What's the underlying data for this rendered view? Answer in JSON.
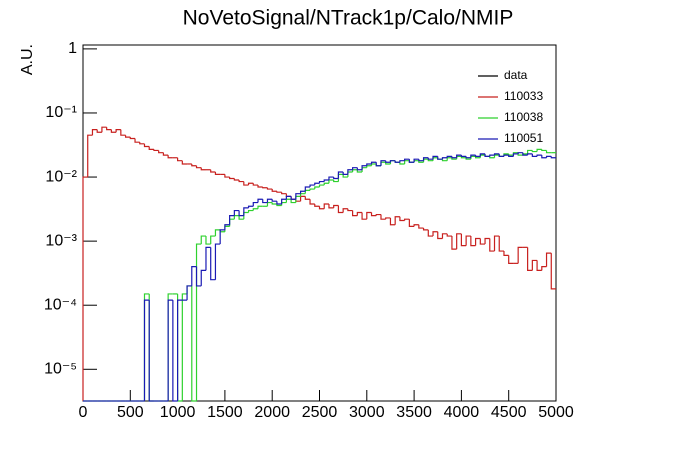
{
  "chart_data": {
    "type": "histogram",
    "title": "NoVetoSignal/NTrack1p/Calo/NMIP",
    "y_label": "A.U.",
    "ylog": true,
    "legend": "top-right",
    "xlim": [
      0,
      5000
    ],
    "ylim": [
      3.2e-06,
      1.15
    ],
    "xticks": [
      0,
      500,
      1000,
      1500,
      2000,
      2500,
      3000,
      3500,
      4000,
      4500,
      5000
    ],
    "yticks": [
      {
        "value": 1e-05,
        "label": "10⁻⁵"
      },
      {
        "value": 0.0001,
        "label": "10⁻⁴"
      },
      {
        "value": 0.001,
        "label": "10⁻³"
      },
      {
        "value": 0.01,
        "label": "10⁻²"
      },
      {
        "value": 0.1,
        "label": "10⁻¹"
      },
      1
    ],
    "bins": [
      0,
      50,
      100,
      150,
      200,
      250,
      300,
      350,
      400,
      450,
      500,
      550,
      600,
      650,
      700,
      750,
      800,
      850,
      900,
      950,
      1000,
      1050,
      1100,
      1150,
      1200,
      1250,
      1300,
      1350,
      1400,
      1450,
      1500,
      1550,
      1600,
      1650,
      1700,
      1750,
      1800,
      1850,
      1900,
      1950,
      2000,
      2050,
      2100,
      2150,
      2200,
      2250,
      2300,
      2350,
      2400,
      2450,
      2500,
      2550,
      2600,
      2650,
      2700,
      2750,
      2800,
      2850,
      2900,
      2950,
      3000,
      3050,
      3100,
      3150,
      3200,
      3250,
      3300,
      3350,
      3400,
      3450,
      3500,
      3550,
      3600,
      3650,
      3700,
      3750,
      3800,
      3850,
      3900,
      3950,
      4000,
      4050,
      4100,
      4150,
      4200,
      4250,
      4300,
      4350,
      4400,
      4450,
      4500,
      4550,
      4600,
      4650,
      4700,
      4750,
      4800,
      4850,
      4900,
      4950,
      5000
    ],
    "series": [
      {
        "name": "data",
        "color": "#000000"
      },
      {
        "name": "110033",
        "color": "#c8201e",
        "values": [
          0.01,
          0.045,
          0.055,
          0.05,
          0.06,
          0.055,
          0.05,
          0.055,
          0.045,
          0.042,
          0.04,
          0.035,
          0.033,
          0.03,
          0.027,
          0.026,
          0.024,
          0.022,
          0.02,
          0.02,
          0.018,
          0.016,
          0.016,
          0.015,
          0.014,
          0.013,
          0.013,
          0.012,
          0.011,
          0.011,
          0.01,
          0.0095,
          0.009,
          0.0085,
          0.0075,
          0.008,
          0.0075,
          0.007,
          0.0068,
          0.0065,
          0.006,
          0.0058,
          0.0055,
          0.005,
          0.0045,
          0.0042,
          0.005,
          0.0045,
          0.0038,
          0.0035,
          0.0032,
          0.0038,
          0.0033,
          0.0036,
          0.0028,
          0.0032,
          0.003,
          0.0025,
          0.0028,
          0.0022,
          0.0028,
          0.0025,
          0.0026,
          0.0022,
          0.0023,
          0.0018,
          0.0024,
          0.0021,
          0.0022,
          0.0017,
          0.0018,
          0.0016,
          0.0015,
          0.0012,
          0.0014,
          0.0011,
          0.0013,
          0.0012,
          0.00075,
          0.0013,
          0.00085,
          0.0012,
          0.00085,
          0.0011,
          0.0009,
          0.0011,
          0.0007,
          0.0012,
          0.0007,
          0.0006,
          0.00045,
          0.00045,
          0.0008,
          0.0008,
          0.00035,
          0.0005,
          0.00035,
          0.0004,
          0.00065,
          0.00018
        ]
      },
      {
        "name": "110038",
        "color": "#2ed12e",
        "values": [
          0,
          0,
          0,
          0,
          0,
          0,
          0,
          0,
          0,
          0,
          0,
          0,
          0,
          0.00015,
          0,
          0,
          0,
          0,
          0.00015,
          0.00015,
          0,
          0.00015,
          0.0002,
          0,
          0.0009,
          0.0012,
          0.0009,
          0.0012,
          0.0015,
          0.0014,
          0.0017,
          0.0022,
          0.0025,
          0.0022,
          0.0028,
          0.003,
          0.0032,
          0.0035,
          0.0035,
          0.004,
          0.0038,
          0.0036,
          0.004,
          0.0045,
          0.004,
          0.005,
          0.0055,
          0.0062,
          0.0065,
          0.007,
          0.0075,
          0.008,
          0.009,
          0.0085,
          0.011,
          0.01,
          0.012,
          0.013,
          0.012,
          0.014,
          0.015,
          0.016,
          0.015,
          0.017,
          0.016,
          0.018,
          0.017,
          0.016,
          0.018,
          0.017,
          0.018,
          0.017,
          0.019,
          0.018,
          0.02,
          0.019,
          0.018,
          0.02,
          0.019,
          0.021,
          0.02,
          0.019,
          0.021,
          0.02,
          0.022,
          0.021,
          0.02,
          0.022,
          0.021,
          0.023,
          0.022,
          0.024,
          0.022,
          0.023,
          0.026,
          0.025,
          0.027,
          0.026,
          0.024,
          0.024
        ]
      },
      {
        "name": "110051",
        "color": "#1a1ab4",
        "values": [
          0,
          0,
          0,
          0,
          0,
          0,
          0,
          0,
          0,
          0,
          0,
          0,
          0,
          0.00012,
          0,
          0,
          0,
          0,
          0.00012,
          0,
          0.00012,
          0.00012,
          0.0002,
          0.0004,
          0.0002,
          0.00035,
          0.0008,
          0.00025,
          0.0009,
          0.0015,
          0.0018,
          0.0025,
          0.003,
          0.0025,
          0.0033,
          0.0035,
          0.004,
          0.0045,
          0.004,
          0.0045,
          0.0042,
          0.0038,
          0.0045,
          0.005,
          0.0045,
          0.0055,
          0.006,
          0.007,
          0.0075,
          0.008,
          0.0085,
          0.009,
          0.01,
          0.0095,
          0.012,
          0.011,
          0.013,
          0.014,
          0.013,
          0.015,
          0.016,
          0.017,
          0.015,
          0.018,
          0.017,
          0.018,
          0.017,
          0.018,
          0.019,
          0.017,
          0.019,
          0.018,
          0.02,
          0.019,
          0.021,
          0.019,
          0.02,
          0.021,
          0.02,
          0.022,
          0.021,
          0.02,
          0.022,
          0.021,
          0.023,
          0.021,
          0.022,
          0.023,
          0.021,
          0.022,
          0.021,
          0.023,
          0.024,
          0.022,
          0.023,
          0.021,
          0.022,
          0.02,
          0.021,
          0.02
        ]
      }
    ]
  }
}
